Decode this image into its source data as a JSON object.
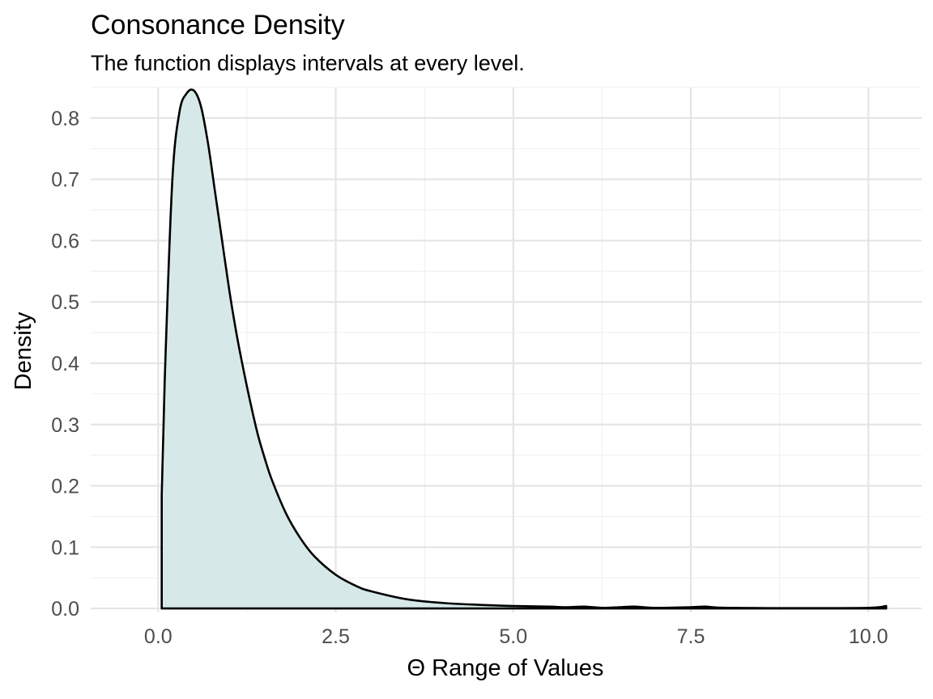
{
  "chart_data": {
    "type": "area",
    "title": "Consonance Density",
    "subtitle": "The function displays intervals at every level.",
    "xlabel": "Θ Range of Values",
    "ylabel": "Density",
    "xlim": [
      -0.95,
      10.75
    ],
    "ylim": [
      -0.0065,
      0.85
    ],
    "x_ticks": [
      0.0,
      2.5,
      5.0,
      7.5,
      10.0
    ],
    "x_tick_labels": [
      "0.0",
      "2.5",
      "5.0",
      "7.5",
      "10.0"
    ],
    "y_ticks": [
      0.0,
      0.1,
      0.2,
      0.3,
      0.4,
      0.5,
      0.6,
      0.7,
      0.8
    ],
    "y_tick_labels": [
      "0.0",
      "0.1",
      "0.2",
      "0.3",
      "0.4",
      "0.5",
      "0.6",
      "0.7",
      "0.8"
    ],
    "grid": true,
    "fill_color": "#d4e8e7",
    "line_color": "#000000",
    "series": [
      {
        "x": [
          0.05,
          0.05,
          0.1,
          0.2,
          0.3,
          0.4,
          0.5,
          0.6,
          0.7,
          0.8,
          0.9,
          1.0,
          1.1,
          1.2,
          1.3,
          1.4,
          1.5,
          1.6,
          1.8,
          2.0,
          2.2,
          2.5,
          2.8,
          3.0,
          3.5,
          4.0,
          4.5,
          5.0,
          5.5,
          5.75,
          6.0,
          6.25,
          6.5,
          6.7,
          7.0,
          7.5,
          7.7,
          8.0,
          9.0,
          10.0,
          10.25,
          10.25
        ],
        "y": [
          0.0,
          0.185,
          0.4,
          0.7,
          0.81,
          0.84,
          0.845,
          0.82,
          0.76,
          0.68,
          0.6,
          0.52,
          0.45,
          0.39,
          0.335,
          0.285,
          0.245,
          0.21,
          0.155,
          0.115,
          0.085,
          0.055,
          0.036,
          0.028,
          0.015,
          0.009,
          0.006,
          0.004,
          0.003,
          0.002,
          0.003,
          0.001,
          0.002,
          0.003,
          0.001,
          0.002,
          0.003,
          0.001,
          0.0005,
          0.001,
          0.004,
          0.0
        ]
      }
    ]
  }
}
